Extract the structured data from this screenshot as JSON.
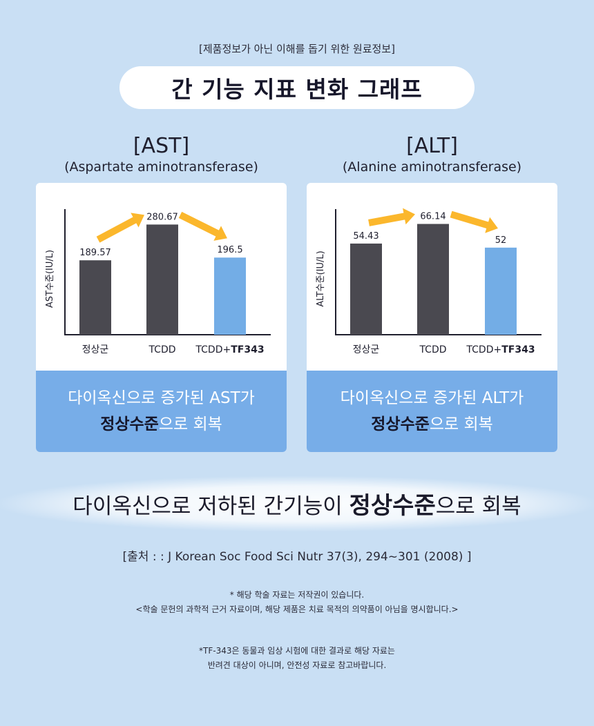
{
  "notice": "[제품정보가 아닌 이해를 돕기 위한 원료정보]",
  "title": "간 기능 지표 변화 그래프",
  "colors": {
    "background": "#c9dff4",
    "bar_dark": "#4a4950",
    "bar_highlight": "#73ade6",
    "arrow": "#fbb72c",
    "caption_bg": "#77ade8"
  },
  "panels": [
    {
      "heading": "[AST]",
      "subheading": "(Aspartate aminotransferase)",
      "caption_line1": "다이옥신으로 증가된 AST가",
      "caption_strong": "정상수준",
      "caption_rest": "으로 회복"
    },
    {
      "heading": "[ALT]",
      "subheading": "(Alanine aminotransferase)",
      "caption_line1": "다이옥신으로 증가된 ALT가",
      "caption_strong": "정상수준",
      "caption_rest": "으로 회복"
    }
  ],
  "chart_data": [
    {
      "type": "bar",
      "categories": [
        "정상군",
        "TCDD",
        "TCDD+TF343"
      ],
      "category_parts": [
        [
          "정상군",
          ""
        ],
        [
          "TCDD",
          ""
        ],
        [
          "TCDD+",
          "TF343"
        ]
      ],
      "values": [
        189.57,
        280.67,
        196.5
      ],
      "value_labels": [
        "189.57",
        "280.67",
        "196.5"
      ],
      "highlight_index": 2,
      "ylabel": "AST수준(IU/L)",
      "xlabel": "",
      "title": "",
      "ylim": [
        0,
        320
      ],
      "grid": false,
      "legend": "none"
    },
    {
      "type": "bar",
      "categories": [
        "정상군",
        "TCDD",
        "TCDD+TF343"
      ],
      "category_parts": [
        [
          "정상군",
          ""
        ],
        [
          "TCDD",
          ""
        ],
        [
          "TCDD+",
          "TF343"
        ]
      ],
      "values": [
        54.43,
        66.14,
        52
      ],
      "value_labels": [
        "54.43",
        "66.14",
        "52"
      ],
      "highlight_index": 2,
      "ylabel": "ALT수준(IU/L)",
      "xlabel": "",
      "title": "",
      "ylim": [
        0,
        75
      ],
      "grid": false,
      "legend": "none"
    }
  ],
  "headline": {
    "prefix": "다이옥신으로 저하된 간기능이 ",
    "strong": "정상수준",
    "suffix": "으로 회복"
  },
  "source": "[출처 : : J Korean Soc Food Sci Nutr 37(3), 294~301 (2008) ]",
  "notes": {
    "copyright_line1": "* 해당 학술 자료는 저작권이 있습니다.",
    "copyright_line2": "<학술 문헌의 과학적 근거 자료이며, 해당 제품은 치료 목적의 의약품이 아님을 명시합니다.>",
    "tf_line1": "*TF-343은 동물과 임상 시험에 대한 결과로 해당 자료는",
    "tf_line2": "반려견 대상이 아니며, 안전성 자료로 참고바랍니다."
  }
}
